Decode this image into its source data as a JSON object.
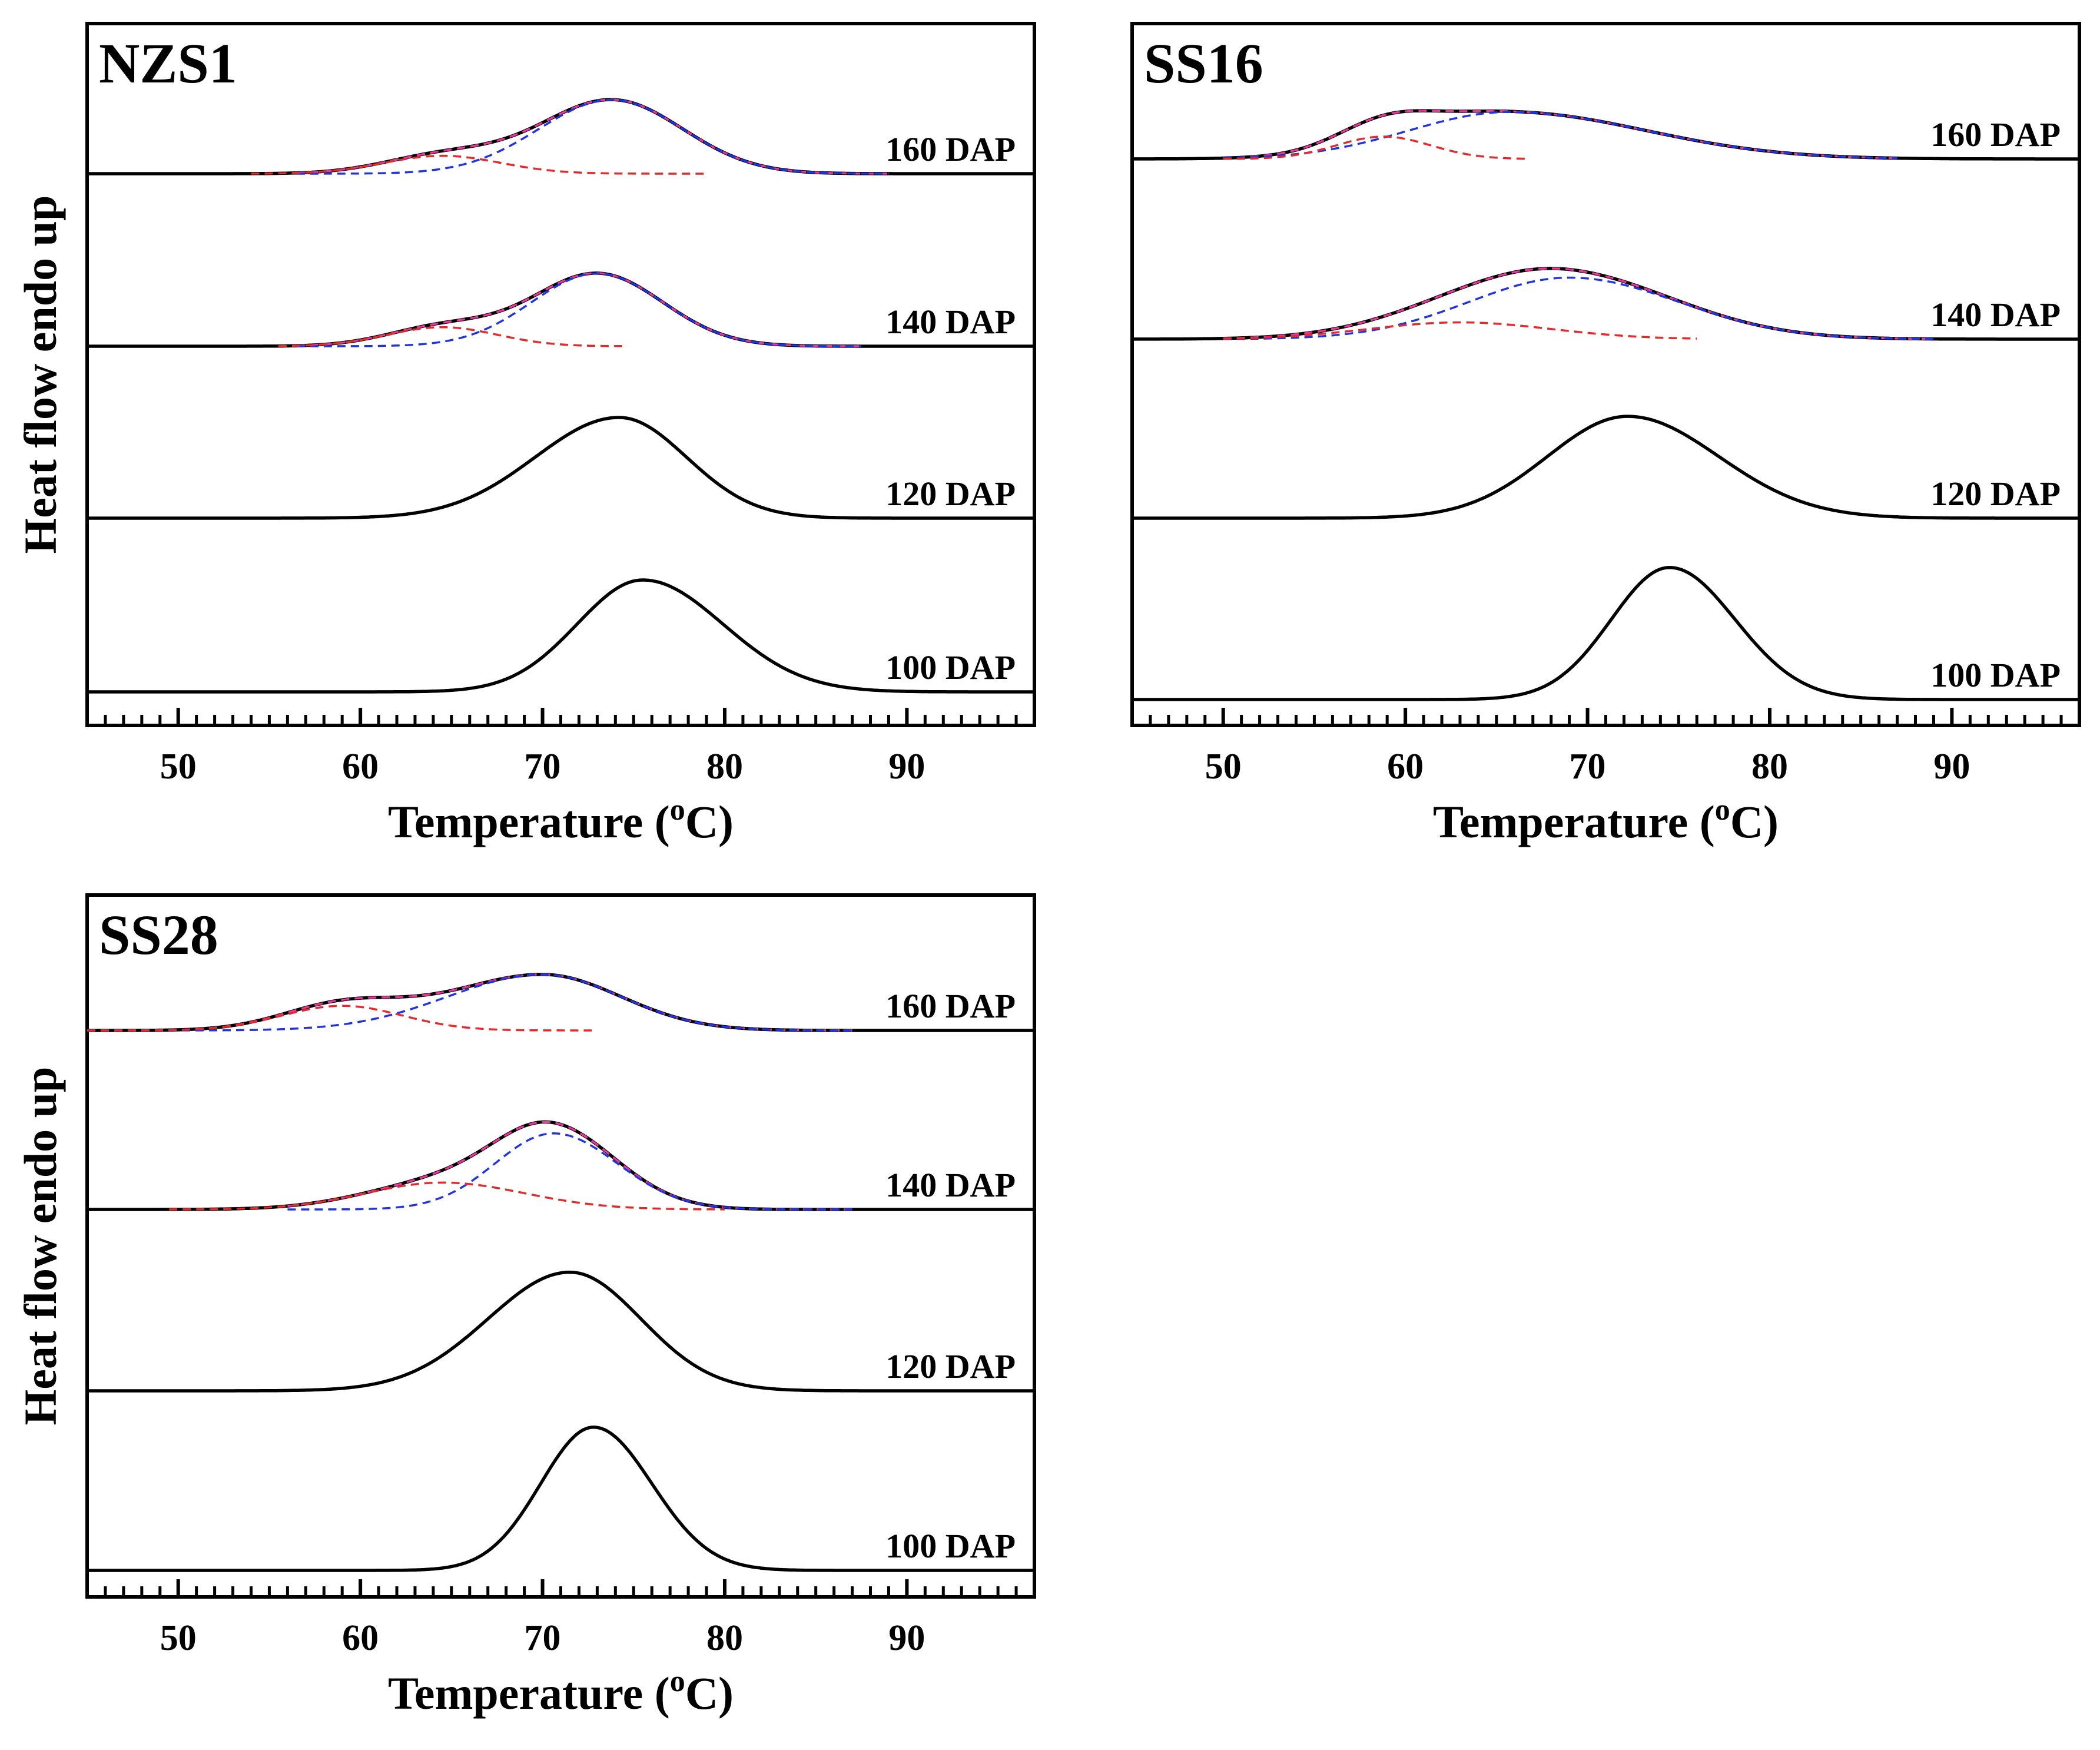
{
  "figure": {
    "ylabel": "Heat flow endo up",
    "xlabel": "Temperature (°C)",
    "xlabel_main": "Temperature (",
    "xlabel_sup": "o",
    "xlabel_end": "C)"
  },
  "colors": {
    "measured": "#000000",
    "fit_sum": "#e6389b",
    "fit_low_temp": "#e32b2b",
    "fit_high_temp": "#2233e0"
  },
  "chart_data": [
    {
      "type": "line",
      "title": "NZS1",
      "xlabel": "Temperature (°C)",
      "ylabel": "Heat flow endo up",
      "xlim": [
        45,
        97
      ],
      "xticks": [
        50,
        60,
        70,
        80,
        90
      ],
      "series": [
        {
          "name": "100 DAP",
          "peaks": [
            {
              "center": 75.5,
              "height": 1.0,
              "sl": 3.6,
              "sr": 4.4
            }
          ],
          "x_range": [
            45,
            97
          ]
        },
        {
          "name": "120 DAP",
          "peaks": [
            {
              "center": 74.2,
              "height": 0.9,
              "sl": 4.6,
              "sr": 3.7
            }
          ],
          "x_range": [
            45,
            97
          ]
        },
        {
          "name": "140 DAP",
          "peaks": [
            {
              "center": 73.0,
              "height": 0.65,
              "sl": 3.6,
              "sr": 3.6
            },
            {
              "center": 64.5,
              "height": 0.17,
              "sl": 3.0,
              "sr": 3.0
            }
          ],
          "x_range": [
            45,
            97
          ],
          "fit_ranges": [
            [
              55.5,
              74.5
            ],
            [
              56.5,
              87.5
            ]
          ]
        },
        {
          "name": "160 DAP",
          "peaks": [
            {
              "center": 73.8,
              "height": 0.66,
              "sl": 4.0,
              "sr": 3.9
            },
            {
              "center": 64.5,
              "height": 0.16,
              "sl": 3.2,
              "sr": 3.2
            }
          ],
          "x_range": [
            45,
            97
          ],
          "fit_ranges": [
            [
              54.0,
              79.0
            ],
            [
              56.5,
              89.0
            ]
          ]
        }
      ]
    },
    {
      "type": "line",
      "title": "SS16",
      "xlabel": "Temperature (°C)",
      "ylabel": "Heat flow endo up",
      "xlim": [
        45,
        97
      ],
      "xticks": [
        50,
        60,
        70,
        80,
        90
      ],
      "series": [
        {
          "name": "100 DAP",
          "peaks": [
            {
              "center": 74.5,
              "height": 1.18,
              "sl": 3.2,
              "sr": 3.6
            }
          ],
          "x_range": [
            45,
            97
          ]
        },
        {
          "name": "120 DAP",
          "peaks": [
            {
              "center": 72.2,
              "height": 0.91,
              "sl": 4.4,
              "sr": 5.0
            }
          ],
          "x_range": [
            45,
            97
          ]
        },
        {
          "name": "140 DAP",
          "peaks": [
            {
              "center": 69.0,
              "height": 0.55,
              "sl": 5.5,
              "sr": 6.0
            },
            {
              "center": 63.0,
              "height": 0.15,
              "sl": 5.0,
              "sr": 5.0
            }
          ],
          "x_range": [
            45,
            97
          ],
          "fit_ranges": [
            [
              50.0,
              76.0
            ],
            [
              50.0,
              89.0
            ]
          ]
        },
        {
          "name": "160 DAP",
          "peaks": [
            {
              "center": 65.7,
              "height": 0.42,
              "sl": 5.5,
              "sr": 7.5
            },
            {
              "center": 58.8,
              "height": 0.2,
              "sl": 2.6,
              "sr": 2.6
            }
          ],
          "x_range": [
            45,
            97
          ],
          "fit_ranges": [
            [
              50.0,
              66.8
            ],
            [
              50.0,
              87.0
            ]
          ]
        }
      ]
    },
    {
      "type": "line",
      "title": "SS28",
      "xlabel": "Temperature (°C)",
      "ylabel": "Heat flow endo up",
      "xlim": [
        45,
        97
      ],
      "xticks": [
        50,
        60,
        70,
        80,
        90
      ],
      "series": [
        {
          "name": "100 DAP",
          "peaks": [
            {
              "center": 72.8,
              "height": 1.28,
              "sl": 2.9,
              "sr": 3.2
            }
          ],
          "x_range": [
            45,
            97
          ]
        },
        {
          "name": "120 DAP",
          "peaks": [
            {
              "center": 71.5,
              "height": 1.06,
              "sl": 4.5,
              "sr": 3.9
            }
          ],
          "x_range": [
            45,
            97
          ]
        },
        {
          "name": "140 DAP",
          "peaks": [
            {
              "center": 70.6,
              "height": 0.68,
              "sl": 3.2,
              "sr": 3.5
            },
            {
              "center": 64.5,
              "height": 0.24,
              "sl": 4.2,
              "sr": 4.5
            }
          ],
          "x_range": [
            45,
            97
          ],
          "fit_ranges": [
            [
              49.5,
              80.0
            ],
            [
              56.0,
              87.0
            ]
          ]
        },
        {
          "name": "160 DAP",
          "peaks": [
            {
              "center": 70.0,
              "height": 0.5,
              "sl": 5.2,
              "sr": 4.3
            },
            {
              "center": 59.0,
              "height": 0.22,
              "sl": 3.3,
              "sr": 3.3
            }
          ],
          "x_range": [
            45,
            97
          ],
          "fit_ranges": [
            [
              45.0,
              73.0
            ],
            [
              45.0,
              87.0
            ]
          ]
        }
      ]
    }
  ]
}
